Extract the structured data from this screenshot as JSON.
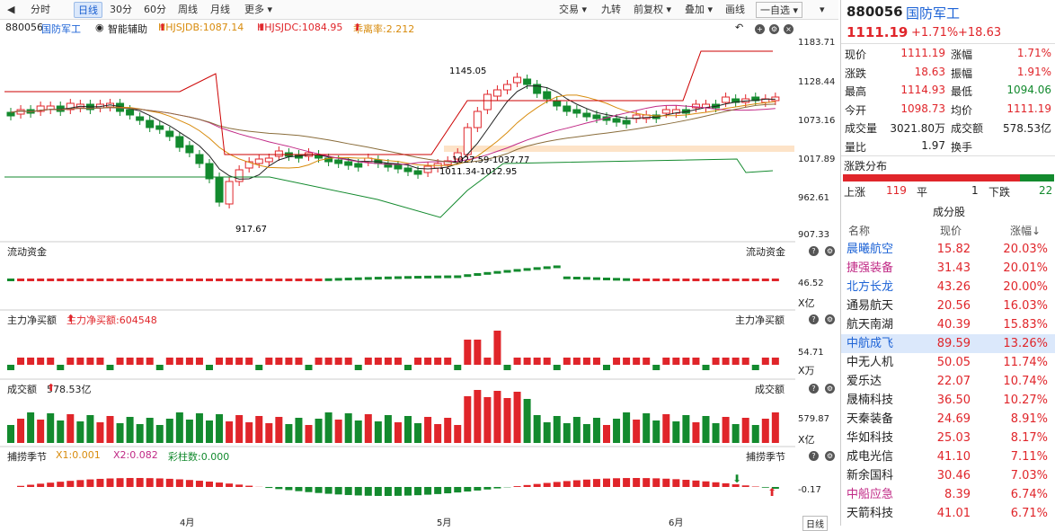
{
  "toolbar": {
    "back_icon": "left-arrow-icon",
    "periods": [
      "分时",
      "日线",
      "30分",
      "60分",
      "周线",
      "月线",
      "更多"
    ],
    "active": "日线",
    "right": [
      "交易",
      "九转",
      "前复权",
      "叠加",
      "画线",
      "一自选"
    ]
  },
  "main": {
    "code": "880056",
    "name": "国防军工",
    "assist": "智能辅助",
    "i1": "HHJSJDB:1087.14",
    "i2": "HHJSJDC:1084.95",
    "i3": "乖离率:2.212",
    "yaxis": [
      "1183.71",
      "1128.44",
      "1073.16",
      "1017.89",
      "962.61",
      "907.33"
    ],
    "ann_high": "1145.05",
    "ann_low": "917.67",
    "ann_mid1": "1027.59-1037.77",
    "ann_mid2": "1011.34-1012.95"
  },
  "flow": {
    "title": "流动资金",
    "title_r": "流动资金",
    "val": "46.52",
    "unit": "X亿"
  },
  "netbuy": {
    "title": "主力净买额",
    "label": "主力净买额:604548",
    "title_r": "主力净买额",
    "val": "54.71",
    "unit": "X万"
  },
  "volume": {
    "title": "成交额",
    "label": "578.53亿",
    "title_r": "成交额",
    "val": "579.87",
    "unit": "X亿"
  },
  "season": {
    "title": "捕捞季节",
    "x1": "X1:0.001",
    "x2": "X2:0.082",
    "bar": "彩柱数:0.000",
    "title_r": "捕捞季节",
    "val": "-0.17"
  },
  "xaxis": {
    "labels": [
      "4月",
      "5月",
      "6月"
    ],
    "period_btn": "日线"
  },
  "quote": {
    "code": "880056",
    "name": "国防军工",
    "price": "1111.19",
    "pct": "+1.71%",
    "chg": "+18.63",
    "rows": [
      [
        "现价",
        "1111.19",
        "涨幅",
        "1.71%"
      ],
      [
        "涨跌",
        "18.63",
        "振幅",
        "1.91%"
      ],
      [
        "最高",
        "1114.93",
        "最低",
        "1094.06"
      ],
      [
        "今开",
        "1098.73",
        "均价",
        "1111.19"
      ],
      [
        "成交量",
        "3021.80万",
        "成交额",
        "578.53亿"
      ],
      [
        "量比",
        "1.97",
        "换手",
        ""
      ]
    ],
    "dist_title": "涨跌分布",
    "up_lbl": "上涨",
    "up": "119",
    "flat_lbl": "平",
    "flat": "1",
    "down_lbl": "下跌",
    "down": "22"
  },
  "stocks": {
    "title": "成分股",
    "headers": [
      "名称",
      "现价",
      "涨幅↓"
    ],
    "rows": [
      [
        "晨曦航空",
        "15.82",
        "20.03%"
      ],
      [
        "捷强装备",
        "31.43",
        "20.01%"
      ],
      [
        "北方长龙",
        "43.26",
        "20.00%"
      ],
      [
        "通易航天",
        "20.56",
        "16.03%"
      ],
      [
        "航天南湖",
        "40.39",
        "15.83%"
      ],
      [
        "中航成飞",
        "89.59",
        "13.26%"
      ],
      [
        "中无人机",
        "50.05",
        "11.74%"
      ],
      [
        "爱乐达",
        "22.07",
        "10.74%"
      ],
      [
        "晟楠科技",
        "36.50",
        "10.27%"
      ],
      [
        "天秦装备",
        "24.69",
        "8.91%"
      ],
      [
        "华如科技",
        "25.03",
        "8.17%"
      ],
      [
        "成电光信",
        "41.10",
        "7.11%"
      ],
      [
        "新余国科",
        "30.46",
        "7.03%"
      ],
      [
        "中船应急",
        "8.39",
        "6.74%"
      ],
      [
        "天箭科技",
        "41.01",
        "6.71%"
      ]
    ]
  },
  "colors": {
    "up": "#e0252a",
    "down": "#138a2e"
  }
}
